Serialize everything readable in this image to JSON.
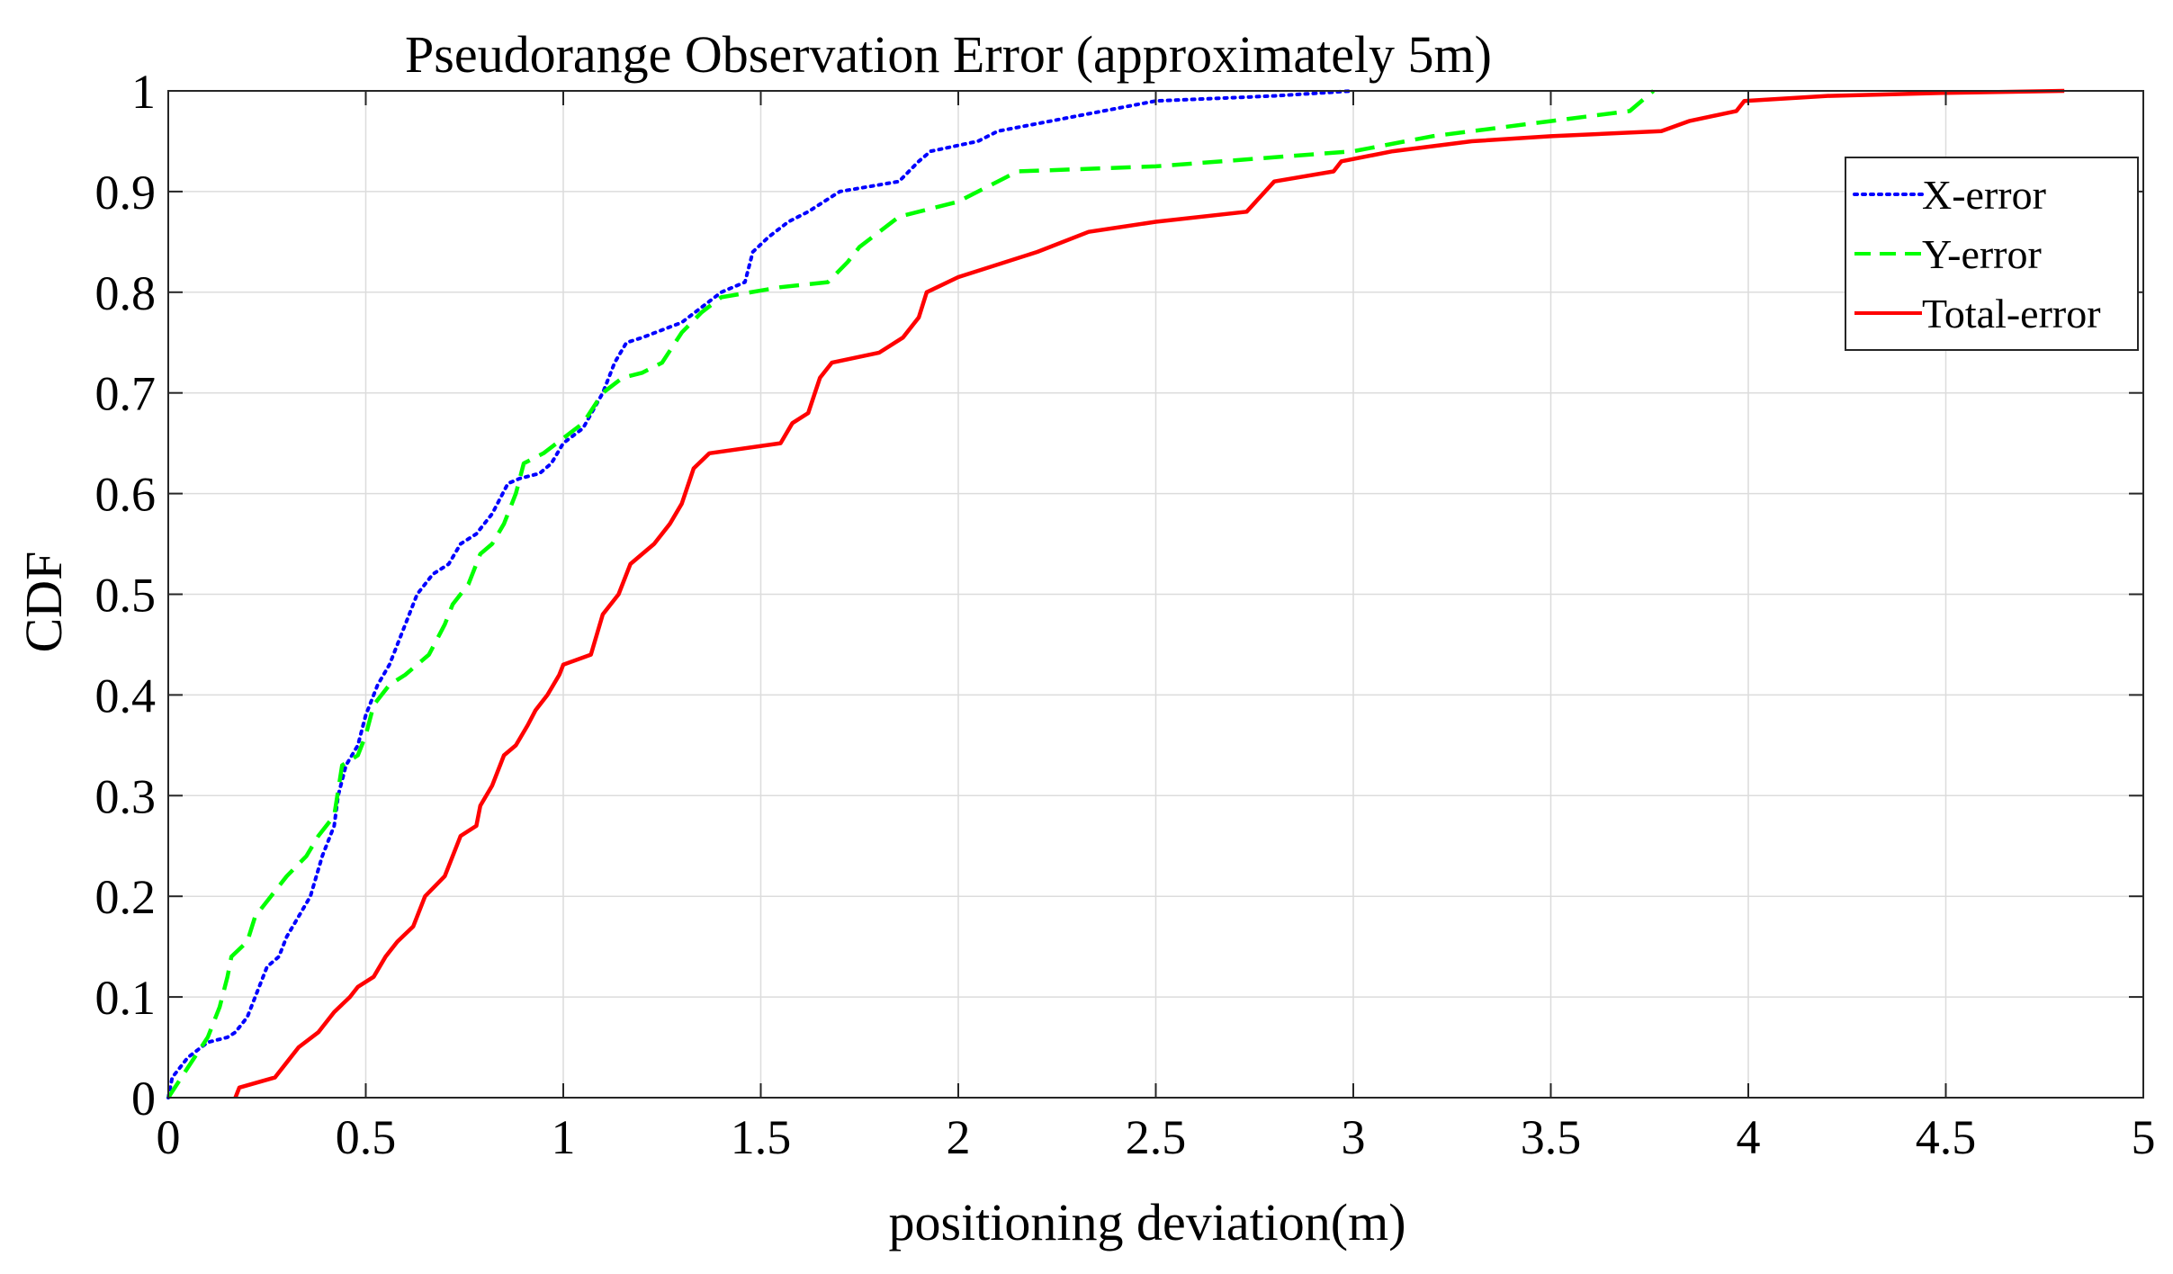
{
  "chart_data": {
    "type": "line",
    "title": "Pseudorange Observation Error (approximately 5m)",
    "xlabel": "positioning deviation(m)",
    "ylabel": "CDF",
    "xlim": [
      0,
      5
    ],
    "ylim": [
      0,
      1
    ],
    "grid": true,
    "legend_position": "top-right",
    "x_ticks": [
      {
        "v": 0,
        "label": "0"
      },
      {
        "v": 0.5,
        "label": "0.5"
      },
      {
        "v": 1,
        "label": "1"
      },
      {
        "v": 1.5,
        "label": "1.5"
      },
      {
        "v": 2,
        "label": "2"
      },
      {
        "v": 2.5,
        "label": "2.5"
      },
      {
        "v": 3,
        "label": "3"
      },
      {
        "v": 3.5,
        "label": "3.5"
      },
      {
        "v": 4,
        "label": "4"
      },
      {
        "v": 4.5,
        "label": "4.5"
      },
      {
        "v": 5,
        "label": "5"
      }
    ],
    "y_ticks": [
      {
        "v": 0,
        "label": "0"
      },
      {
        "v": 0.1,
        "label": "0.1"
      },
      {
        "v": 0.2,
        "label": "0.2"
      },
      {
        "v": 0.3,
        "label": "0.3"
      },
      {
        "v": 0.4,
        "label": "0.4"
      },
      {
        "v": 0.5,
        "label": "0.5"
      },
      {
        "v": 0.6,
        "label": "0.6"
      },
      {
        "v": 0.7,
        "label": "0.7"
      },
      {
        "v": 0.8,
        "label": "0.8"
      },
      {
        "v": 0.9,
        "label": "0.9"
      },
      {
        "v": 1,
        "label": "1"
      }
    ],
    "series": [
      {
        "name": "X-error",
        "color": "#0000ff",
        "style": "dotted",
        "points": [
          [
            0,
            0
          ],
          [
            0.01,
            0.02
          ],
          [
            0.05,
            0.04
          ],
          [
            0.1,
            0.055
          ],
          [
            0.15,
            0.06
          ],
          [
            0.17,
            0.065
          ],
          [
            0.2,
            0.08
          ],
          [
            0.22,
            0.1
          ],
          [
            0.25,
            0.13
          ],
          [
            0.28,
            0.14
          ],
          [
            0.3,
            0.16
          ],
          [
            0.33,
            0.18
          ],
          [
            0.36,
            0.2
          ],
          [
            0.39,
            0.24
          ],
          [
            0.42,
            0.27
          ],
          [
            0.43,
            0.3
          ],
          [
            0.45,
            0.33
          ],
          [
            0.48,
            0.35
          ],
          [
            0.5,
            0.38
          ],
          [
            0.53,
            0.41
          ],
          [
            0.56,
            0.43
          ],
          [
            0.6,
            0.47
          ],
          [
            0.63,
            0.5
          ],
          [
            0.67,
            0.52
          ],
          [
            0.71,
            0.53
          ],
          [
            0.74,
            0.55
          ],
          [
            0.78,
            0.56
          ],
          [
            0.82,
            0.58
          ],
          [
            0.86,
            0.61
          ],
          [
            0.89,
            0.615
          ],
          [
            0.94,
            0.62
          ],
          [
            0.97,
            0.63
          ],
          [
            1.0,
            0.65
          ],
          [
            1.05,
            0.665
          ],
          [
            1.1,
            0.7
          ],
          [
            1.13,
            0.73
          ],
          [
            1.16,
            0.75
          ],
          [
            1.2,
            0.755
          ],
          [
            1.3,
            0.77
          ],
          [
            1.35,
            0.785
          ],
          [
            1.4,
            0.8
          ],
          [
            1.46,
            0.81
          ],
          [
            1.48,
            0.84
          ],
          [
            1.52,
            0.855
          ],
          [
            1.57,
            0.87
          ],
          [
            1.62,
            0.88
          ],
          [
            1.7,
            0.9
          ],
          [
            1.85,
            0.91
          ],
          [
            1.9,
            0.93
          ],
          [
            1.93,
            0.94
          ],
          [
            2.05,
            0.95
          ],
          [
            2.1,
            0.96
          ],
          [
            2.3,
            0.975
          ],
          [
            2.5,
            0.99
          ],
          [
            2.8,
            0.995
          ],
          [
            3.0,
            1.0
          ]
        ]
      },
      {
        "name": "Y-error",
        "color": "#00ff00",
        "style": "dashed",
        "points": [
          [
            0,
            0
          ],
          [
            0.05,
            0.03
          ],
          [
            0.1,
            0.06
          ],
          [
            0.13,
            0.09
          ],
          [
            0.15,
            0.12
          ],
          [
            0.16,
            0.14
          ],
          [
            0.2,
            0.155
          ],
          [
            0.22,
            0.18
          ],
          [
            0.26,
            0.2
          ],
          [
            0.3,
            0.22
          ],
          [
            0.35,
            0.24
          ],
          [
            0.38,
            0.26
          ],
          [
            0.42,
            0.28
          ],
          [
            0.44,
            0.33
          ],
          [
            0.48,
            0.34
          ],
          [
            0.5,
            0.36
          ],
          [
            0.52,
            0.39
          ],
          [
            0.56,
            0.41
          ],
          [
            0.6,
            0.42
          ],
          [
            0.66,
            0.44
          ],
          [
            0.68,
            0.455
          ],
          [
            0.7,
            0.47
          ],
          [
            0.72,
            0.49
          ],
          [
            0.76,
            0.51
          ],
          [
            0.79,
            0.54
          ],
          [
            0.82,
            0.55
          ],
          [
            0.85,
            0.57
          ],
          [
            0.88,
            0.6
          ],
          [
            0.9,
            0.63
          ],
          [
            0.95,
            0.64
          ],
          [
            1.0,
            0.655
          ],
          [
            1.05,
            0.67
          ],
          [
            1.1,
            0.7
          ],
          [
            1.15,
            0.715
          ],
          [
            1.2,
            0.72
          ],
          [
            1.25,
            0.73
          ],
          [
            1.3,
            0.76
          ],
          [
            1.35,
            0.78
          ],
          [
            1.4,
            0.795
          ],
          [
            1.55,
            0.805
          ],
          [
            1.67,
            0.81
          ],
          [
            1.72,
            0.83
          ],
          [
            1.75,
            0.845
          ],
          [
            1.8,
            0.86
          ],
          [
            1.85,
            0.875
          ],
          [
            2.0,
            0.89
          ],
          [
            2.1,
            0.91
          ],
          [
            2.15,
            0.92
          ],
          [
            2.5,
            0.925
          ],
          [
            3.0,
            0.94
          ],
          [
            3.2,
            0.955
          ],
          [
            3.5,
            0.97
          ],
          [
            3.7,
            0.98
          ],
          [
            3.76,
            1.0
          ]
        ]
      },
      {
        "name": "Total-error",
        "color": "#ff0000",
        "style": "solid",
        "points": [
          [
            0.17,
            0
          ],
          [
            0.18,
            0.01
          ],
          [
            0.27,
            0.02
          ],
          [
            0.3,
            0.035
          ],
          [
            0.33,
            0.05
          ],
          [
            0.38,
            0.065
          ],
          [
            0.42,
            0.085
          ],
          [
            0.46,
            0.1
          ],
          [
            0.48,
            0.11
          ],
          [
            0.52,
            0.12
          ],
          [
            0.55,
            0.14
          ],
          [
            0.58,
            0.155
          ],
          [
            0.62,
            0.17
          ],
          [
            0.65,
            0.2
          ],
          [
            0.7,
            0.22
          ],
          [
            0.74,
            0.26
          ],
          [
            0.78,
            0.27
          ],
          [
            0.79,
            0.29
          ],
          [
            0.82,
            0.31
          ],
          [
            0.85,
            0.34
          ],
          [
            0.88,
            0.35
          ],
          [
            0.91,
            0.37
          ],
          [
            0.93,
            0.385
          ],
          [
            0.96,
            0.4
          ],
          [
            0.99,
            0.42
          ],
          [
            1.0,
            0.43
          ],
          [
            1.07,
            0.44
          ],
          [
            1.1,
            0.48
          ],
          [
            1.14,
            0.5
          ],
          [
            1.17,
            0.53
          ],
          [
            1.23,
            0.55
          ],
          [
            1.27,
            0.57
          ],
          [
            1.3,
            0.59
          ],
          [
            1.33,
            0.625
          ],
          [
            1.37,
            0.64
          ],
          [
            1.55,
            0.65
          ],
          [
            1.58,
            0.67
          ],
          [
            1.62,
            0.68
          ],
          [
            1.65,
            0.715
          ],
          [
            1.68,
            0.73
          ],
          [
            1.8,
            0.74
          ],
          [
            1.86,
            0.755
          ],
          [
            1.9,
            0.775
          ],
          [
            1.92,
            0.8
          ],
          [
            2.0,
            0.815
          ],
          [
            2.2,
            0.84
          ],
          [
            2.33,
            0.86
          ],
          [
            2.5,
            0.87
          ],
          [
            2.73,
            0.88
          ],
          [
            2.8,
            0.91
          ],
          [
            2.95,
            0.92
          ],
          [
            2.97,
            0.93
          ],
          [
            3.1,
            0.94
          ],
          [
            3.3,
            0.95
          ],
          [
            3.5,
            0.955
          ],
          [
            3.78,
            0.96
          ],
          [
            3.85,
            0.97
          ],
          [
            3.97,
            0.98
          ],
          [
            3.99,
            0.99
          ],
          [
            4.2,
            0.995
          ],
          [
            4.5,
            0.998
          ],
          [
            4.8,
            1.0
          ]
        ]
      }
    ]
  }
}
